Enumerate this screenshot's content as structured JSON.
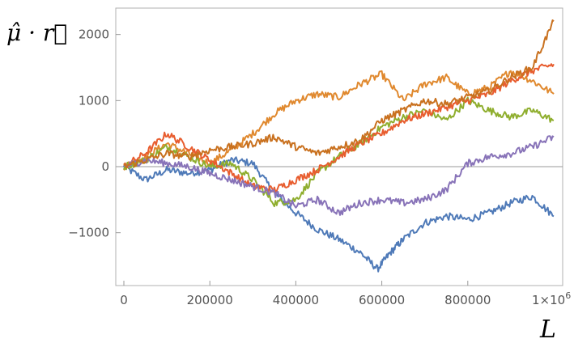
{
  "chart_data": {
    "type": "line",
    "title": "",
    "xlabel": "L",
    "ylabel": "μ̂ · r⃗",
    "xlim": [
      0,
      1000000
    ],
    "ylim": [
      -1800,
      2400
    ],
    "x_ticks": [
      0,
      200000,
      400000,
      600000,
      800000
    ],
    "x_tick_labels": [
      "0",
      "200000",
      "400000",
      "600000",
      "800000"
    ],
    "x_scale_label": "1×10",
    "x_scale_exp": "6",
    "y_ticks": [
      -1000,
      0,
      1000,
      2000
    ],
    "y_tick_labels": [
      "−1000",
      "0",
      "1000",
      "2000"
    ],
    "grid": false,
    "legend": "none",
    "series": [
      {
        "color": "#4f7ab8",
        "x": [
          0,
          50000,
          100000,
          150000,
          200000,
          250000,
          300000,
          350000,
          400000,
          450000,
          500000,
          550000,
          590000,
          620000,
          650000,
          700000,
          750000,
          800000,
          850000,
          900000,
          950000,
          1000000
        ],
        "values": [
          0,
          -200,
          -50,
          -100,
          -50,
          100,
          50,
          -400,
          -700,
          -950,
          -1100,
          -1300,
          -1550,
          -1300,
          -1100,
          -850,
          -750,
          -800,
          -700,
          -550,
          -450,
          -750
        ]
      },
      {
        "color": "#e0892f",
        "x": [
          0,
          50000,
          100000,
          150000,
          200000,
          250000,
          300000,
          350000,
          400000,
          450000,
          500000,
          550000,
          600000,
          650000,
          700000,
          750000,
          800000,
          850000,
          900000,
          950000,
          1000000
        ],
        "values": [
          0,
          150,
          350,
          200,
          50,
          250,
          500,
          800,
          1000,
          1100,
          1050,
          1250,
          1400,
          1000,
          1250,
          1350,
          1100,
          1200,
          1450,
          1300,
          1100
        ]
      },
      {
        "color": "#8fae2e",
        "x": [
          0,
          50000,
          100000,
          150000,
          200000,
          250000,
          300000,
          350000,
          400000,
          450000,
          500000,
          550000,
          600000,
          650000,
          700000,
          750000,
          800000,
          850000,
          900000,
          950000,
          1000000
        ],
        "values": [
          0,
          100,
          300,
          150,
          0,
          50,
          -200,
          -550,
          -500,
          -100,
          150,
          350,
          600,
          750,
          850,
          700,
          1000,
          850,
          750,
          850,
          700
        ]
      },
      {
        "color": "#e85d2f",
        "x": [
          0,
          50000,
          100000,
          150000,
          200000,
          250000,
          300000,
          350000,
          400000,
          450000,
          500000,
          550000,
          600000,
          650000,
          700000,
          750000,
          800000,
          850000,
          900000,
          950000,
          1000000
        ],
        "values": [
          0,
          200,
          500,
          300,
          100,
          -100,
          -300,
          -350,
          -200,
          -50,
          150,
          350,
          500,
          700,
          800,
          900,
          1000,
          1100,
          1300,
          1450,
          1550
        ]
      },
      {
        "color": "#8873b8",
        "x": [
          0,
          50000,
          100000,
          150000,
          200000,
          250000,
          300000,
          350000,
          400000,
          450000,
          500000,
          550000,
          600000,
          650000,
          700000,
          750000,
          800000,
          850000,
          900000,
          950000,
          1000000
        ],
        "values": [
          0,
          100,
          50,
          0,
          -100,
          -200,
          -300,
          -400,
          -600,
          -500,
          -700,
          -550,
          -500,
          -550,
          -500,
          -350,
          50,
          150,
          200,
          300,
          450
        ]
      },
      {
        "color": "#c9711f",
        "x": [
          0,
          50000,
          100000,
          150000,
          200000,
          250000,
          300000,
          350000,
          400000,
          450000,
          500000,
          550000,
          600000,
          650000,
          700000,
          750000,
          800000,
          850000,
          900000,
          950000,
          1000000
        ],
        "values": [
          0,
          100,
          200,
          150,
          250,
          300,
          350,
          450,
          300,
          200,
          300,
          400,
          700,
          850,
          1000,
          950,
          1050,
          1150,
          1350,
          1500,
          2200
        ]
      }
    ]
  }
}
